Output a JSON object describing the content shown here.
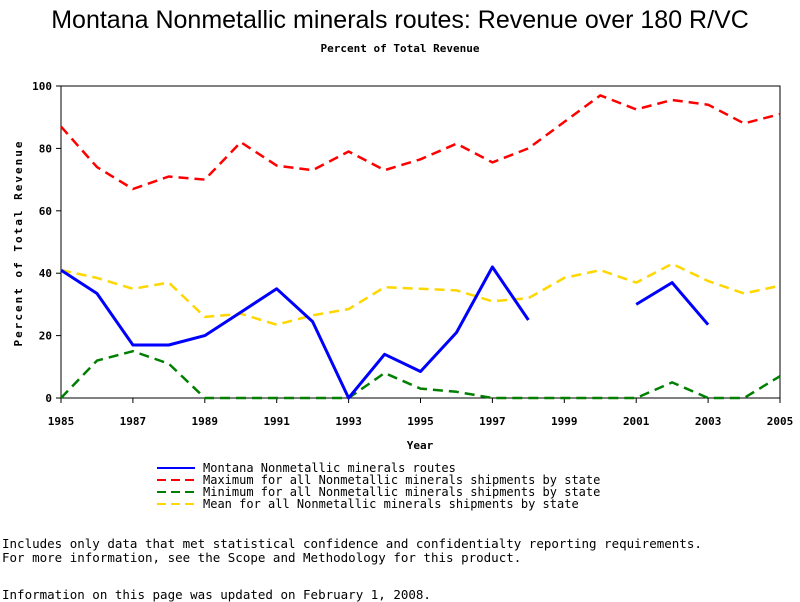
{
  "chart_data": {
    "type": "line",
    "title": "Montana Nonmetallic minerals routes: Revenue over 180 R/VC",
    "subtitle": "Percent of Total Revenue",
    "xlabel": "Year",
    "ylabel": "Percent of Total Revenue",
    "xlim": [
      1985,
      2005
    ],
    "ylim": [
      0,
      100
    ],
    "x_ticks": [
      1985,
      1987,
      1989,
      1991,
      1993,
      1995,
      1997,
      1999,
      2001,
      2003,
      2005
    ],
    "y_ticks": [
      0,
      20,
      40,
      60,
      80,
      100
    ],
    "grid": false,
    "legend_position": "bottom",
    "x": [
      1985,
      1986,
      1987,
      1988,
      1989,
      1990,
      1991,
      1992,
      1993,
      1994,
      1995,
      1996,
      1997,
      1998,
      1999,
      2000,
      2001,
      2002,
      2003,
      2004,
      2005
    ],
    "series": [
      {
        "name": "Montana Nonmetallic minerals routes",
        "color": "#0000ff",
        "style": "solid",
        "values": [
          41,
          33.5,
          17,
          17,
          20,
          27.5,
          35,
          24.5,
          0,
          14,
          8.5,
          21,
          42,
          25,
          null,
          null,
          30,
          37,
          23.5,
          null,
          null
        ]
      },
      {
        "name": "Maximum for all Nonmetallic minerals shipments by state",
        "color": "#ff0000",
        "style": "dashed",
        "values": [
          87,
          74,
          67,
          71,
          70,
          82,
          74.5,
          73,
          79,
          73,
          76.5,
          81.5,
          75.5,
          80,
          88.5,
          97,
          92.5,
          95.5,
          94,
          88,
          91
        ]
      },
      {
        "name": "Minimum for all Nonmetallic minerals shipments by state",
        "color": "#008000",
        "style": "dashed",
        "values": [
          0,
          12,
          15,
          11,
          0,
          0,
          0,
          0,
          0,
          8,
          3,
          2,
          0,
          0,
          0,
          0,
          0,
          5,
          0,
          0,
          7
        ]
      },
      {
        "name": "Mean for all Nonmetallic minerals shipments by state",
        "color": "#ffd700",
        "style": "dashed",
        "values": [
          41,
          38.5,
          35,
          37,
          26,
          27,
          23.5,
          26.5,
          28.5,
          35.5,
          35,
          34.5,
          31,
          32,
          38.5,
          41,
          37,
          43,
          37.5,
          33.5,
          36
        ]
      }
    ]
  },
  "notes": {
    "line1": "Includes only data that met statistical confidence and confidentialty reporting requirements.",
    "line2": "For more information, see the Scope and Methodology for this product.",
    "line3": "Information on this page was updated on February 1, 2008."
  }
}
